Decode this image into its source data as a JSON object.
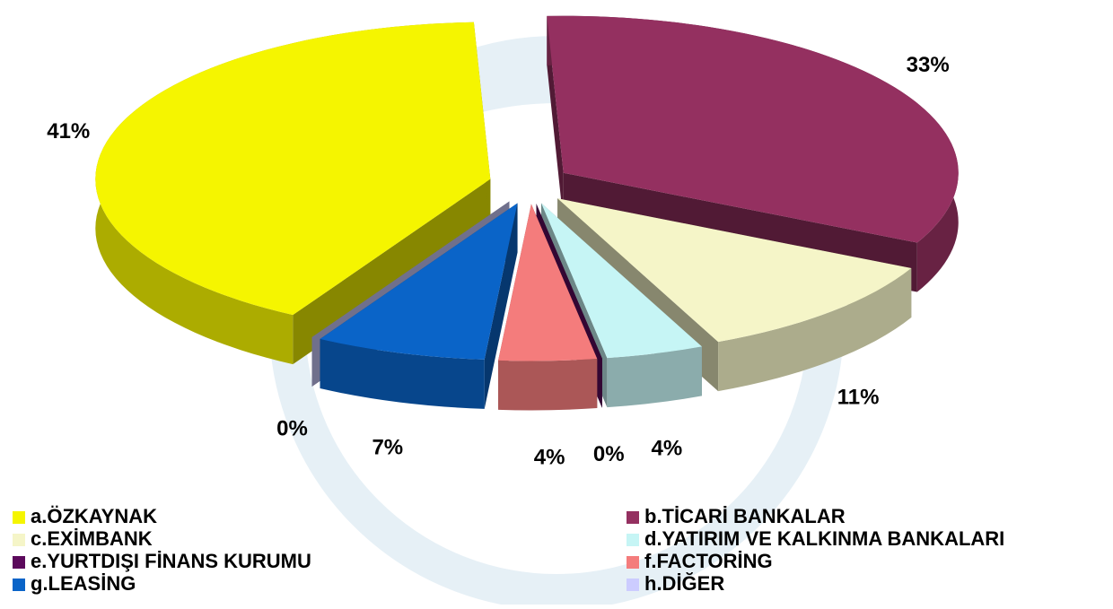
{
  "chart_data": {
    "type": "pie",
    "categories": [
      "a.ÖZKAYNAK",
      "b.TİCARİ BANKALAR",
      "c.EXİMBANK",
      "d.YATIRIM VE KALKINMA BANKALARI",
      "e.YURTDIŞI FİNANS KURUMU",
      "f.FACTORİNG",
      "g.LEASİNG",
      "h.DİĞER"
    ],
    "values": [
      41,
      33,
      11,
      4,
      0,
      4,
      7,
      0
    ],
    "value_labels": [
      "41%",
      "33%",
      "11%",
      "4%",
      "0%",
      "4%",
      "7%",
      "0%"
    ],
    "colors": [
      "#f5f500",
      "#943060",
      "#f5f5c8",
      "#c6f5f5",
      "#5c0a5c",
      "#f47c7c",
      "#0a64c8",
      "#ccccff"
    ],
    "legend": "bottom"
  }
}
